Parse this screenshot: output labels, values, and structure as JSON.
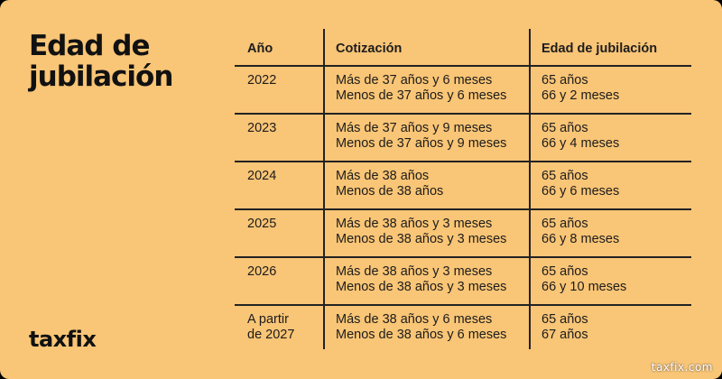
{
  "title": {
    "line1": "Edad de",
    "line2": "jubilación"
  },
  "logo": "taxfix",
  "watermark": "taxfix.com",
  "table": {
    "headers": [
      "Año",
      "Cotización",
      "Edad de jubilación"
    ],
    "rows": [
      {
        "year": [
          "2022"
        ],
        "cotizacion": [
          "Más de 37 años y 6 meses",
          "Menos de 37 años y 6 meses"
        ],
        "edad": [
          "65 años",
          "66 y 2 meses"
        ]
      },
      {
        "year": [
          "2023"
        ],
        "cotizacion": [
          "Más de 37 años y 9 meses",
          "Menos de 37 años y 9 meses"
        ],
        "edad": [
          "65 años",
          "66 y 4 meses"
        ]
      },
      {
        "year": [
          "2024"
        ],
        "cotizacion": [
          "Más de 38 años",
          "Menos de 38 años"
        ],
        "edad": [
          "65 años",
          "66 y 6 meses"
        ]
      },
      {
        "year": [
          "2025"
        ],
        "cotizacion": [
          "Más de 38 años y 3 meses",
          "Menos de 38 años y 3 meses"
        ],
        "edad": [
          "65 años",
          "66 y 8 meses"
        ]
      },
      {
        "year": [
          "2026"
        ],
        "cotizacion": [
          "Más de 38 años y 3 meses",
          "Menos de 38 años y 3 meses"
        ],
        "edad": [
          "65 años",
          "66 y 10 meses"
        ]
      },
      {
        "year": [
          "A partir",
          "de 2027"
        ],
        "cotizacion": [
          "Más de 38 años y 6 meses",
          "Menos de 38 años y 6 meses"
        ],
        "edad": [
          "65 años",
          "67 años"
        ]
      }
    ]
  },
  "colors": {
    "background": "#f9c576",
    "text": "#1c1c1c",
    "rule": "#222222"
  }
}
